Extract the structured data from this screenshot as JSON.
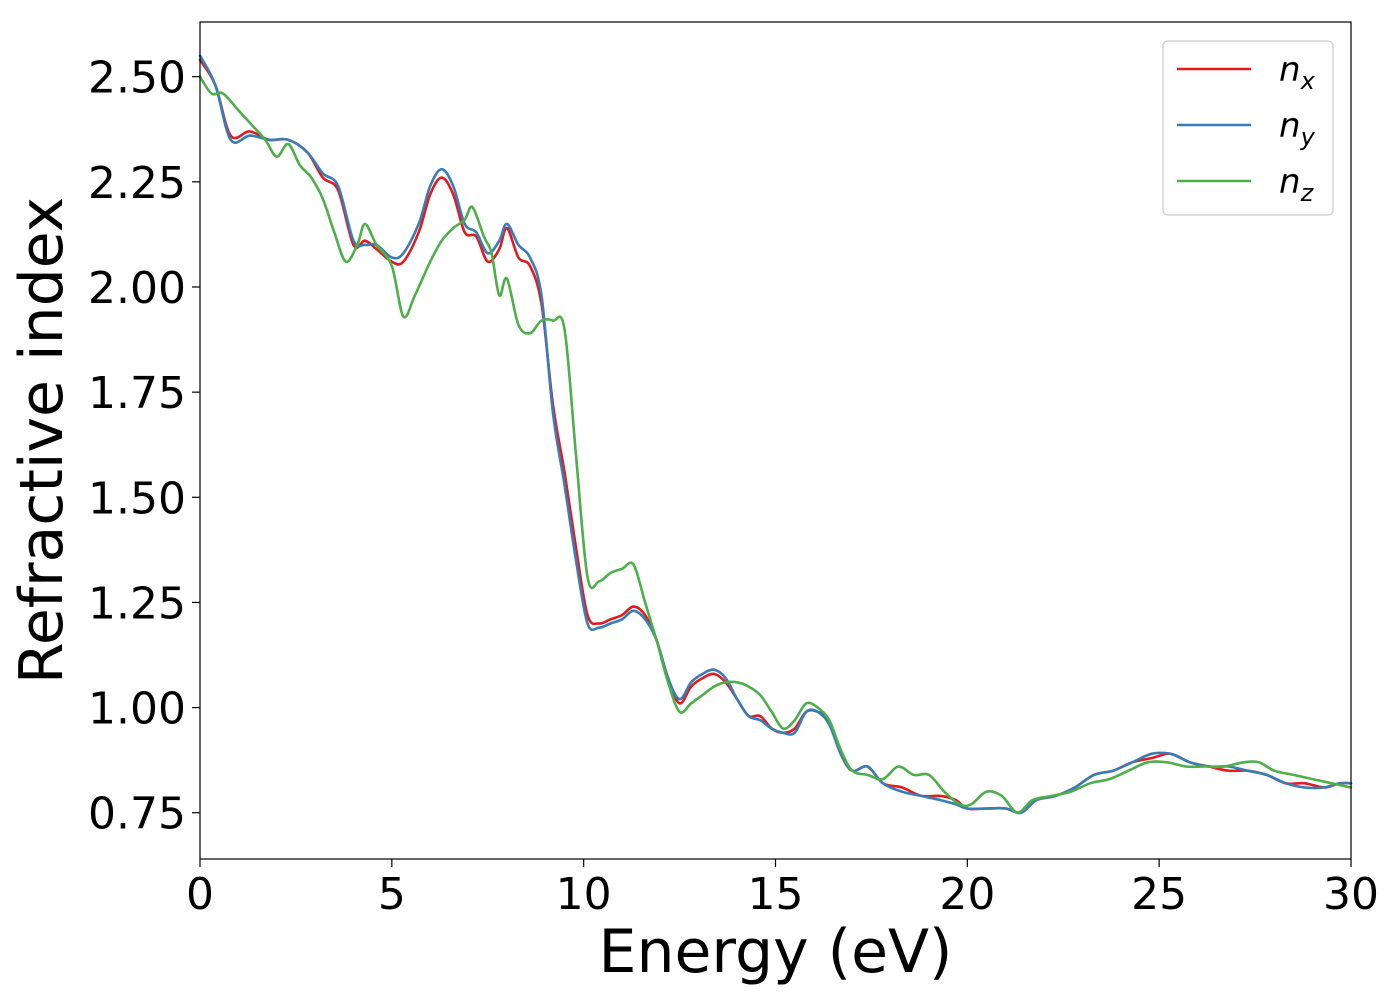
{
  "chart_data": {
    "type": "line",
    "xlabel": "Energy (eV)",
    "ylabel": "Refractive index",
    "xlim": [
      0,
      30
    ],
    "ylim": [
      0.64,
      2.63
    ],
    "xticks": [
      0,
      5,
      10,
      15,
      20,
      25,
      30
    ],
    "xtick_labels": [
      "0",
      "5",
      "10",
      "15",
      "20",
      "25",
      "30"
    ],
    "yticks": [
      0.75,
      1.0,
      1.25,
      1.5,
      1.75,
      2.0,
      2.25,
      2.5
    ],
    "ytick_labels": [
      "0.75",
      "1.00",
      "1.25",
      "1.50",
      "1.75",
      "2.00",
      "2.25",
      "2.50"
    ],
    "grid": false,
    "legend": "top-right",
    "series": [
      {
        "name": "n_x",
        "label_base": "n",
        "label_sub": "x",
        "color": "#e41a1c",
        "x": [
          0,
          0.4,
          0.8,
          1.3,
          1.8,
          2.3,
          2.8,
          3.2,
          3.6,
          4.0,
          4.3,
          4.6,
          5.0,
          5.3,
          5.7,
          6.0,
          6.3,
          6.6,
          6.9,
          7.2,
          7.5,
          7.8,
          8.0,
          8.3,
          8.6,
          8.9,
          9.2,
          9.5,
          9.8,
          10.1,
          10.4,
          10.7,
          11.0,
          11.3,
          11.6,
          11.9,
          12.2,
          12.5,
          12.8,
          13.1,
          13.4,
          13.7,
          14.0,
          14.3,
          14.6,
          14.9,
          15.2,
          15.5,
          15.8,
          16.1,
          16.4,
          16.7,
          17.0,
          17.4,
          17.8,
          18.3,
          18.8,
          19.3,
          19.7,
          20.0,
          20.5,
          21.0,
          21.4,
          21.8,
          22.3,
          22.8,
          23.3,
          23.8,
          24.3,
          24.8,
          25.3,
          25.8,
          26.3,
          26.8,
          27.3,
          27.8,
          28.3,
          28.8,
          29.3,
          29.7,
          30.0
        ],
        "y": [
          2.54,
          2.48,
          2.36,
          2.37,
          2.35,
          2.35,
          2.32,
          2.26,
          2.23,
          2.1,
          2.11,
          2.09,
          2.06,
          2.06,
          2.13,
          2.22,
          2.26,
          2.22,
          2.13,
          2.12,
          2.06,
          2.09,
          2.14,
          2.07,
          2.05,
          1.96,
          1.72,
          1.56,
          1.38,
          1.22,
          1.2,
          1.21,
          1.22,
          1.24,
          1.22,
          1.16,
          1.07,
          1.01,
          1.05,
          1.07,
          1.08,
          1.06,
          1.02,
          0.98,
          0.98,
          0.95,
          0.94,
          0.95,
          0.99,
          0.99,
          0.97,
          0.89,
          0.85,
          0.86,
          0.82,
          0.81,
          0.79,
          0.79,
          0.78,
          0.76,
          0.76,
          0.76,
          0.75,
          0.78,
          0.79,
          0.81,
          0.84,
          0.85,
          0.87,
          0.88,
          0.89,
          0.87,
          0.86,
          0.85,
          0.85,
          0.84,
          0.82,
          0.82,
          0.81,
          0.82,
          0.82
        ]
      },
      {
        "name": "n_y",
        "label_base": "n",
        "label_sub": "y",
        "color": "#377eb8",
        "x": [
          0,
          0.4,
          0.8,
          1.3,
          1.8,
          2.3,
          2.8,
          3.2,
          3.6,
          4.0,
          4.3,
          4.6,
          5.0,
          5.3,
          5.7,
          6.0,
          6.3,
          6.6,
          6.9,
          7.2,
          7.5,
          7.8,
          8.0,
          8.3,
          8.6,
          8.9,
          9.2,
          9.5,
          9.8,
          10.1,
          10.4,
          10.7,
          11.0,
          11.3,
          11.6,
          11.9,
          12.2,
          12.5,
          12.8,
          13.1,
          13.4,
          13.7,
          14.0,
          14.3,
          14.6,
          14.9,
          15.2,
          15.5,
          15.8,
          16.1,
          16.4,
          16.7,
          17.0,
          17.4,
          17.8,
          18.3,
          18.8,
          19.3,
          19.7,
          20.0,
          20.5,
          21.0,
          21.4,
          21.8,
          22.3,
          22.8,
          23.3,
          23.8,
          24.3,
          24.8,
          25.3,
          25.8,
          26.3,
          26.8,
          27.3,
          27.8,
          28.3,
          28.8,
          29.3,
          29.7,
          30.0
        ],
        "y": [
          2.55,
          2.48,
          2.35,
          2.36,
          2.35,
          2.35,
          2.32,
          2.27,
          2.24,
          2.11,
          2.1,
          2.1,
          2.07,
          2.08,
          2.15,
          2.24,
          2.28,
          2.24,
          2.15,
          2.13,
          2.08,
          2.11,
          2.15,
          2.1,
          2.07,
          1.98,
          1.7,
          1.53,
          1.35,
          1.2,
          1.19,
          1.2,
          1.21,
          1.23,
          1.21,
          1.16,
          1.07,
          1.02,
          1.06,
          1.08,
          1.09,
          1.07,
          1.02,
          0.98,
          0.97,
          0.95,
          0.94,
          0.94,
          0.99,
          0.99,
          0.96,
          0.89,
          0.85,
          0.86,
          0.82,
          0.8,
          0.79,
          0.78,
          0.77,
          0.76,
          0.76,
          0.76,
          0.75,
          0.78,
          0.79,
          0.81,
          0.84,
          0.85,
          0.87,
          0.89,
          0.89,
          0.87,
          0.86,
          0.86,
          0.85,
          0.84,
          0.82,
          0.81,
          0.81,
          0.82,
          0.82
        ]
      },
      {
        "name": "n_z",
        "label_base": "n",
        "label_sub": "z",
        "color": "#4daf4a",
        "x": [
          0,
          0.3,
          0.6,
          1.0,
          1.3,
          1.7,
          2.0,
          2.3,
          2.6,
          2.9,
          3.2,
          3.5,
          3.8,
          4.1,
          4.3,
          4.6,
          5.0,
          5.3,
          5.6,
          6.0,
          6.3,
          6.6,
          6.9,
          7.1,
          7.4,
          7.6,
          7.8,
          8.0,
          8.3,
          8.6,
          8.9,
          9.2,
          9.5,
          9.8,
          10.1,
          10.4,
          10.7,
          11.0,
          11.3,
          11.6,
          11.9,
          12.2,
          12.5,
          12.8,
          13.1,
          13.4,
          13.7,
          14.0,
          14.3,
          14.6,
          14.9,
          15.2,
          15.5,
          15.8,
          16.1,
          16.4,
          16.7,
          17.0,
          17.4,
          17.8,
          18.2,
          18.6,
          19.0,
          19.4,
          19.8,
          20.1,
          20.5,
          20.9,
          21.3,
          21.7,
          22.2,
          22.7,
          23.2,
          23.7,
          24.2,
          24.7,
          25.2,
          25.7,
          26.2,
          26.7,
          27.2,
          27.6,
          28.0,
          28.5,
          29.0,
          29.5,
          30.0
        ],
        "y": [
          2.5,
          2.46,
          2.46,
          2.42,
          2.39,
          2.35,
          2.31,
          2.34,
          2.29,
          2.26,
          2.21,
          2.13,
          2.06,
          2.1,
          2.15,
          2.1,
          2.05,
          1.93,
          1.98,
          2.06,
          2.11,
          2.14,
          2.16,
          2.19,
          2.12,
          2.08,
          1.98,
          2.02,
          1.91,
          1.89,
          1.92,
          1.92,
          1.9,
          1.6,
          1.31,
          1.3,
          1.32,
          1.33,
          1.34,
          1.25,
          1.16,
          1.06,
          0.99,
          1.01,
          1.03,
          1.05,
          1.06,
          1.06,
          1.05,
          1.03,
          0.99,
          0.95,
          0.97,
          1.01,
          1.0,
          0.97,
          0.9,
          0.85,
          0.84,
          0.83,
          0.86,
          0.84,
          0.84,
          0.8,
          0.77,
          0.77,
          0.8,
          0.79,
          0.75,
          0.78,
          0.79,
          0.8,
          0.82,
          0.83,
          0.85,
          0.87,
          0.87,
          0.86,
          0.86,
          0.86,
          0.87,
          0.87,
          0.85,
          0.84,
          0.83,
          0.82,
          0.81
        ]
      }
    ]
  }
}
